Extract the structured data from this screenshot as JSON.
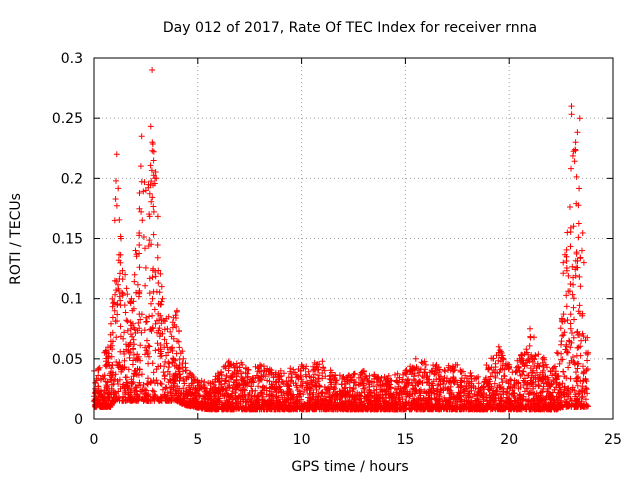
{
  "chart_data": {
    "type": "scatter",
    "title": "Day 012 of 2017, Rate Of TEC Index for receiver rnna",
    "xlabel": "GPS time / hours",
    "ylabel": "ROTI / TECUs",
    "xlim": [
      0,
      25
    ],
    "ylim": [
      0,
      0.3
    ],
    "xticks": [
      0,
      5,
      10,
      15,
      20,
      25
    ],
    "xtick_labels": [
      "0",
      "5",
      "10",
      "15",
      "20",
      "25"
    ],
    "yticks": [
      0,
      0.05,
      0.1,
      0.15,
      0.2,
      0.25,
      0.3
    ],
    "ytick_labels": [
      "0",
      "0.05",
      "0.1",
      "0.15",
      "0.2",
      "0.25",
      "0.3"
    ],
    "grid": true,
    "marker": "+",
    "color": "#ff0000",
    "series": [
      {
        "name": "ROTI",
        "envelope": {
          "x": [
            0,
            0.5,
            0.8,
            1.0,
            1.1,
            1.3,
            1.5,
            1.8,
            2.0,
            2.3,
            2.5,
            2.8,
            3.0,
            3.3,
            3.6,
            4.0,
            4.3,
            4.8,
            5.5,
            6.5,
            8.0,
            9.0,
            10.0,
            11.0,
            12.0,
            13.0,
            14.0,
            15.0,
            15.5,
            16.5,
            17.5,
            18.5,
            19.5,
            20.0,
            20.5,
            21.0,
            22.0,
            22.3,
            22.6,
            22.8,
            23.0,
            23.2,
            23.4,
            23.6,
            23.8
          ],
          "y_min": [
            0.01,
            0.01,
            0.01,
            0.015,
            0.015,
            0.015,
            0.015,
            0.015,
            0.015,
            0.015,
            0.015,
            0.015,
            0.015,
            0.015,
            0.015,
            0.015,
            0.012,
            0.01,
            0.008,
            0.008,
            0.008,
            0.008,
            0.008,
            0.008,
            0.008,
            0.008,
            0.008,
            0.008,
            0.008,
            0.008,
            0.008,
            0.008,
            0.008,
            0.008,
            0.008,
            0.008,
            0.008,
            0.008,
            0.01,
            0.01,
            0.01,
            0.01,
            0.01,
            0.01,
            0.01
          ],
          "y_max": [
            0.04,
            0.055,
            0.07,
            0.165,
            0.22,
            0.15,
            0.12,
            0.1,
            0.14,
            0.235,
            0.19,
            0.29,
            0.2,
            0.1,
            0.085,
            0.09,
            0.05,
            0.035,
            0.03,
            0.048,
            0.045,
            0.04,
            0.045,
            0.048,
            0.035,
            0.04,
            0.035,
            0.04,
            0.05,
            0.045,
            0.045,
            0.035,
            0.06,
            0.045,
            0.05,
            0.075,
            0.04,
            0.055,
            0.13,
            0.155,
            0.26,
            0.23,
            0.25,
            0.13,
            0.055
          ]
        }
      }
    ]
  }
}
